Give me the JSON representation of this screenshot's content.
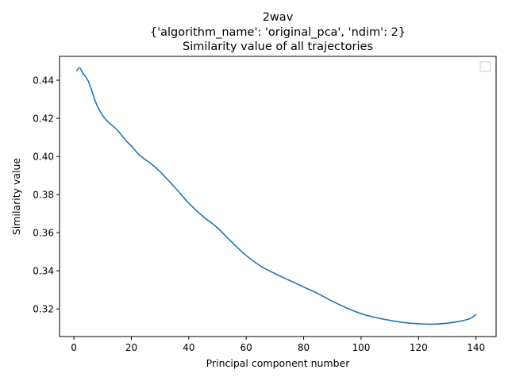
{
  "chart_data": {
    "type": "line",
    "title_lines": [
      "2wav",
      "{'algorithm_name': 'original_pca', 'ndim': 2}",
      "Similarity value of all trajectories"
    ],
    "xlabel": "Principal component number",
    "ylabel": "Similarity value",
    "xlim": [
      -5,
      147
    ],
    "ylim": [
      0.3055,
      0.4525
    ],
    "xticks": [
      0,
      20,
      40,
      60,
      80,
      100,
      120,
      140
    ],
    "yticks": [
      0.32,
      0.34,
      0.36,
      0.38,
      0.4,
      0.42,
      0.44
    ],
    "ytick_labels": [
      "0.32",
      "0.34",
      "0.36",
      "0.38",
      "0.40",
      "0.42",
      "0.44"
    ],
    "grid": false,
    "legend_placement": "top-right",
    "line_color": "#1f77b4",
    "series": [
      {
        "x": [
          1,
          2,
          3,
          4,
          5,
          6,
          7,
          8,
          10,
          12,
          15,
          18,
          20,
          23,
          27,
          30,
          35,
          40,
          45,
          50,
          55,
          60,
          65,
          70,
          75,
          80,
          85,
          90,
          95,
          100,
          105,
          110,
          115,
          120,
          125,
          130,
          135,
          138,
          140
        ],
        "values": [
          0.445,
          0.4465,
          0.444,
          0.442,
          0.4395,
          0.4355,
          0.431,
          0.427,
          0.4215,
          0.418,
          0.414,
          0.4085,
          0.4055,
          0.4005,
          0.396,
          0.392,
          0.384,
          0.3755,
          0.3685,
          0.3625,
          0.355,
          0.348,
          0.3425,
          0.3385,
          0.335,
          0.3315,
          0.328,
          0.324,
          0.3205,
          0.3175,
          0.3155,
          0.314,
          0.3128,
          0.3122,
          0.312,
          0.3125,
          0.3137,
          0.315,
          0.317
        ]
      }
    ]
  }
}
